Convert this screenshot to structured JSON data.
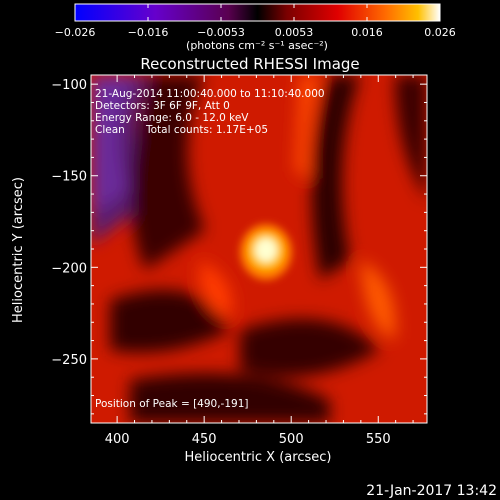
{
  "colorbar": {
    "ticks": [
      "−0.026",
      "−0.016",
      "−0.0053",
      "0.0053",
      "0.016",
      "0.026"
    ],
    "units": "(photons cm⁻² s⁻¹ asec⁻²)",
    "colors": [
      "#0000ff",
      "#6600cc",
      "#5a0050",
      "#000000",
      "#7a0000",
      "#e00000",
      "#ff6a00",
      "#ffc000",
      "#ffffff"
    ]
  },
  "annotation": {
    "time": "21-Aug-2014 11:00:40.000 to 11:10:40.000",
    "detectors": "Detectors: 3F 6F 9F, Att 0",
    "energy": "Energy Range: 6.0 - 12.0 keV",
    "clean_label": "Clean",
    "counts": "Total counts: 1.17E+05",
    "peak": "Position of Peak = [490,-191]"
  },
  "timestamp": "21-Jan-2017 13:42",
  "chart_data": {
    "type": "heatmap",
    "title": "Reconstructed RHESSI Image",
    "xlabel": "Heliocentric X (arcsec)",
    "ylabel": "Heliocentric Y (arcsec)",
    "xlim": [
      385,
      578
    ],
    "ylim": [
      -285,
      -95
    ],
    "x_ticks": [
      400,
      450,
      500,
      550
    ],
    "x_tick_labels": [
      "400",
      "450",
      "500",
      "550"
    ],
    "y_ticks": [
      -100,
      -150,
      -200,
      -250
    ],
    "y_tick_labels": [
      "−100",
      "−150",
      "−200",
      "−250"
    ],
    "peak": {
      "x": 490,
      "y": -191
    },
    "colorbar_range": [
      -0.026,
      0.026
    ]
  }
}
